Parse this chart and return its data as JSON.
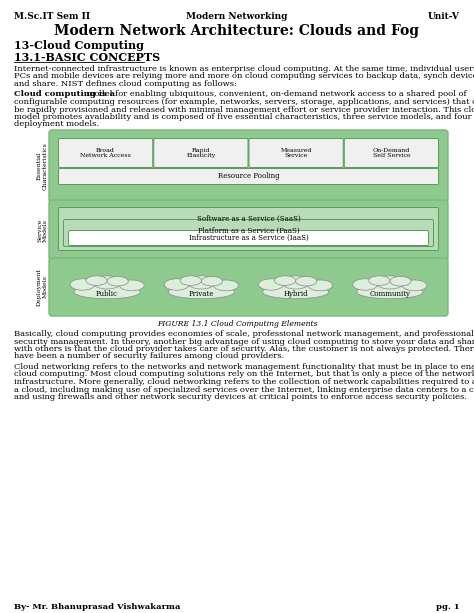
{
  "header_left": "M.Sc.IT Sem II",
  "header_center": "Modern Networking",
  "header_right": "Unit-V",
  "title": "Modern Network Architecture: Clouds and Fog",
  "subtitle": "13-Cloud Computing",
  "section": "13.1-BASIC CONCEPTS",
  "para1_lines": [
    "Internet-connected infrastructure is known as enterprise cloud computing. At the same time, individual users of",
    "PCs and mobile devices are relying more and more on cloud computing services to backup data, synch devices,",
    "and share. NIST defines cloud computing as follows:"
  ],
  "para2_bold": "Cloud computing is a",
  "para2_line1_rest": " model for enabling ubiquitous, convenient, on-demand network access to a shared pool of",
  "para2_lines": [
    "configurable computing resources (for example, networks, servers, storage, applications, and services) that can",
    "be rapidly provisioned and released with minimal management effort or service provider interaction. This cloud",
    "model promotes availability and is composed of five essential characteristics, three service models, and four",
    "deployment models."
  ],
  "fig_caption": "FIGURE 13.1 Cloud Computing Elements",
  "para3_lines": [
    "Basically, cloud computing provides economies of scale, professional network management, and professional",
    "security management. In theory, another big advantage of using cloud computing to store your data and share it",
    "with others is that the cloud provider takes care of security. Alas, the customer is not always protected. There",
    "have been a number of security failures among cloud providers."
  ],
  "para4_lines": [
    "Cloud networking refers to the networks and network management functionality that must be in place to enable",
    "cloud computing. Most cloud computing solutions rely on the Internet, but that is only a piece of the networking",
    "infrastructure. More generally, cloud networking refers to the collection of network capabilities required to access",
    "a cloud, including making use of specialized services over the Internet, linking enterprise data centers to a cloud,",
    "and using firewalls and other network security devices at critical points to enforce access security policies."
  ],
  "footer_left": "By- Mr. Bhanuprasad Vishwakarma",
  "footer_right": "pg. 1",
  "bg_color": "#ffffff",
  "diagram_outer_color": "#7ab87a",
  "diagram_outer_fill": "#8ec98e",
  "diagram_inner_fill": "#b8dbb8",
  "box_fill": "#f0f0f0",
  "box_white": "#ffffff",
  "ec_box_labels": [
    "Broad\nNetwork Access",
    "Rapid\nElasticity",
    "Measured\nService",
    "On-Demand\nSelf Service"
  ],
  "sm_labels": [
    "Software as a Service (SaaS)",
    "Platform as a Service (PaaS)",
    "Infrastructure as a Service (IaaS)"
  ],
  "dm_labels": [
    "Public",
    "Private",
    "Hybrid",
    "Community"
  ],
  "side_labels": [
    "Essential\nCharacteristics",
    "Service\nModels",
    "Deployment\nModels"
  ],
  "header_fontsize": 6.5,
  "title_fontsize": 10,
  "subtitle_fontsize": 8,
  "section_fontsize": 8,
  "body_fontsize": 6,
  "diagram_fontsize": 5,
  "caption_fontsize": 5.5,
  "footer_fontsize": 6
}
